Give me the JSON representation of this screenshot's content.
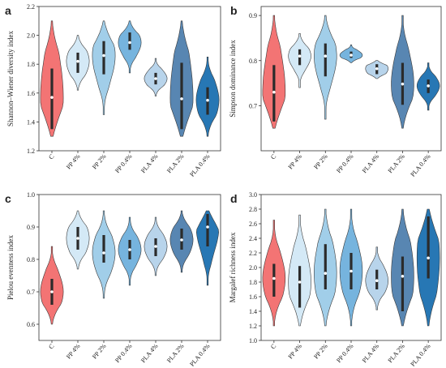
{
  "colors": [
    "#f26d6d",
    "#d2e8f5",
    "#9ccbe8",
    "#6fb0dc",
    "#b4d2ea",
    "#4f7fae",
    "#1b70b0"
  ],
  "chart_data": [
    {
      "type": "violin",
      "panel": "a",
      "ylabel": "Shannon–Wiener diversity index",
      "categories": [
        "C",
        "PP 4%",
        "PP 2%",
        "PP 0.4%",
        "PLA 4%",
        "PLA 2%",
        "PLA 0.4%"
      ],
      "ylim": [
        1.2,
        2.2
      ],
      "yticks": [
        "1.2",
        "1.4",
        "1.6",
        "1.8",
        "2.0",
        "2.2"
      ],
      "series": [
        {
          "min": 1.3,
          "max": 2.1,
          "q1": 1.35,
          "q3": 1.77,
          "median": 1.57
        },
        {
          "min": 1.62,
          "max": 2.0,
          "q1": 1.74,
          "q3": 1.88,
          "median": 1.82
        },
        {
          "min": 1.45,
          "max": 2.1,
          "q1": 1.73,
          "q3": 1.96,
          "median": 1.86
        },
        {
          "min": 1.74,
          "max": 2.1,
          "q1": 1.9,
          "q3": 2.02,
          "median": 1.95
        },
        {
          "min": 1.58,
          "max": 1.84,
          "q1": 1.66,
          "q3": 1.74,
          "median": 1.7
        },
        {
          "min": 1.3,
          "max": 2.1,
          "q1": 1.35,
          "q3": 1.81,
          "median": 1.56
        },
        {
          "min": 1.3,
          "max": 1.85,
          "q1": 1.45,
          "q3": 1.64,
          "median": 1.55
        }
      ]
    },
    {
      "type": "violin",
      "panel": "b",
      "ylabel": "Simpson dominance index",
      "categories": [
        "C",
        "PP 4%",
        "PP 2%",
        "PP 0.4%",
        "PLA 4%",
        "PLA 2%",
        "PLA 0.4%"
      ],
      "ylim": [
        0.6,
        0.92
      ],
      "yticks": [
        "0.7",
        "0.8",
        "0.9"
      ],
      "series": [
        {
          "min": 0.65,
          "max": 0.9,
          "q1": 0.665,
          "q3": 0.79,
          "median": 0.73
        },
        {
          "min": 0.74,
          "max": 0.86,
          "q1": 0.79,
          "q3": 0.825,
          "median": 0.81
        },
        {
          "min": 0.67,
          "max": 0.9,
          "q1": 0.765,
          "q3": 0.838,
          "median": 0.81
        },
        {
          "min": 0.795,
          "max": 0.835,
          "q1": 0.806,
          "q3": 0.82,
          "median": 0.812
        },
        {
          "min": 0.76,
          "max": 0.8,
          "q1": 0.77,
          "q3": 0.792,
          "median": 0.782
        },
        {
          "min": 0.65,
          "max": 0.9,
          "q1": 0.702,
          "q3": 0.795,
          "median": 0.748
        },
        {
          "min": 0.69,
          "max": 0.795,
          "q1": 0.728,
          "q3": 0.758,
          "median": 0.744
        }
      ]
    },
    {
      "type": "violin",
      "panel": "c",
      "ylabel": "Pielou evenness index",
      "categories": [
        "C",
        "PP 4%",
        "PP 2%",
        "PP 0.4%",
        "PLA 4%",
        "PLA 2%",
        "PLA 0.4%"
      ],
      "ylim": [
        0.55,
        1.0
      ],
      "yticks": [
        "0.6",
        "0.7",
        "0.8",
        "0.9",
        "1.0"
      ],
      "series": [
        {
          "min": 0.6,
          "max": 0.84,
          "q1": 0.66,
          "q3": 0.74,
          "median": 0.7
        },
        {
          "min": 0.77,
          "max": 0.95,
          "q1": 0.83,
          "q3": 0.9,
          "median": 0.865
        },
        {
          "min": 0.68,
          "max": 0.95,
          "q1": 0.79,
          "q3": 0.875,
          "median": 0.82
        },
        {
          "min": 0.72,
          "max": 0.93,
          "q1": 0.8,
          "q3": 0.86,
          "median": 0.83
        },
        {
          "min": 0.75,
          "max": 0.93,
          "q1": 0.81,
          "q3": 0.865,
          "median": 0.84
        },
        {
          "min": 0.76,
          "max": 0.95,
          "q1": 0.83,
          "q3": 0.895,
          "median": 0.86
        },
        {
          "min": 0.72,
          "max": 0.95,
          "q1": 0.84,
          "q3": 0.94,
          "median": 0.9
        }
      ]
    },
    {
      "type": "violin",
      "panel": "d",
      "ylabel": "Margalef richness index",
      "categories": [
        "C",
        "PP 4%",
        "PP 2%",
        "PP 0.4%",
        "PLA 4%",
        "PLA 2%",
        "PLA 0.4%"
      ],
      "ylim": [
        1.0,
        3.0
      ],
      "yticks": [
        "1.0",
        "1.2",
        "1.4",
        "1.6",
        "1.8",
        "2.0",
        "2.2",
        "2.4",
        "2.6",
        "2.8",
        "3.0"
      ],
      "series": [
        {
          "min": 1.2,
          "max": 2.65,
          "q1": 1.6,
          "q3": 2.05,
          "median": 1.85
        },
        {
          "min": 1.2,
          "max": 2.72,
          "q1": 1.45,
          "q3": 2.02,
          "median": 1.8
        },
        {
          "min": 1.2,
          "max": 2.8,
          "q1": 1.7,
          "q3": 2.32,
          "median": 1.92
        },
        {
          "min": 1.2,
          "max": 2.8,
          "q1": 1.7,
          "q3": 2.2,
          "median": 1.95
        },
        {
          "min": 1.42,
          "max": 2.28,
          "q1": 1.7,
          "q3": 1.97,
          "median": 1.82
        },
        {
          "min": 1.2,
          "max": 2.8,
          "q1": 1.4,
          "q3": 2.15,
          "median": 1.88
        },
        {
          "min": 1.2,
          "max": 2.8,
          "q1": 1.85,
          "q3": 2.7,
          "median": 2.13
        }
      ]
    }
  ]
}
